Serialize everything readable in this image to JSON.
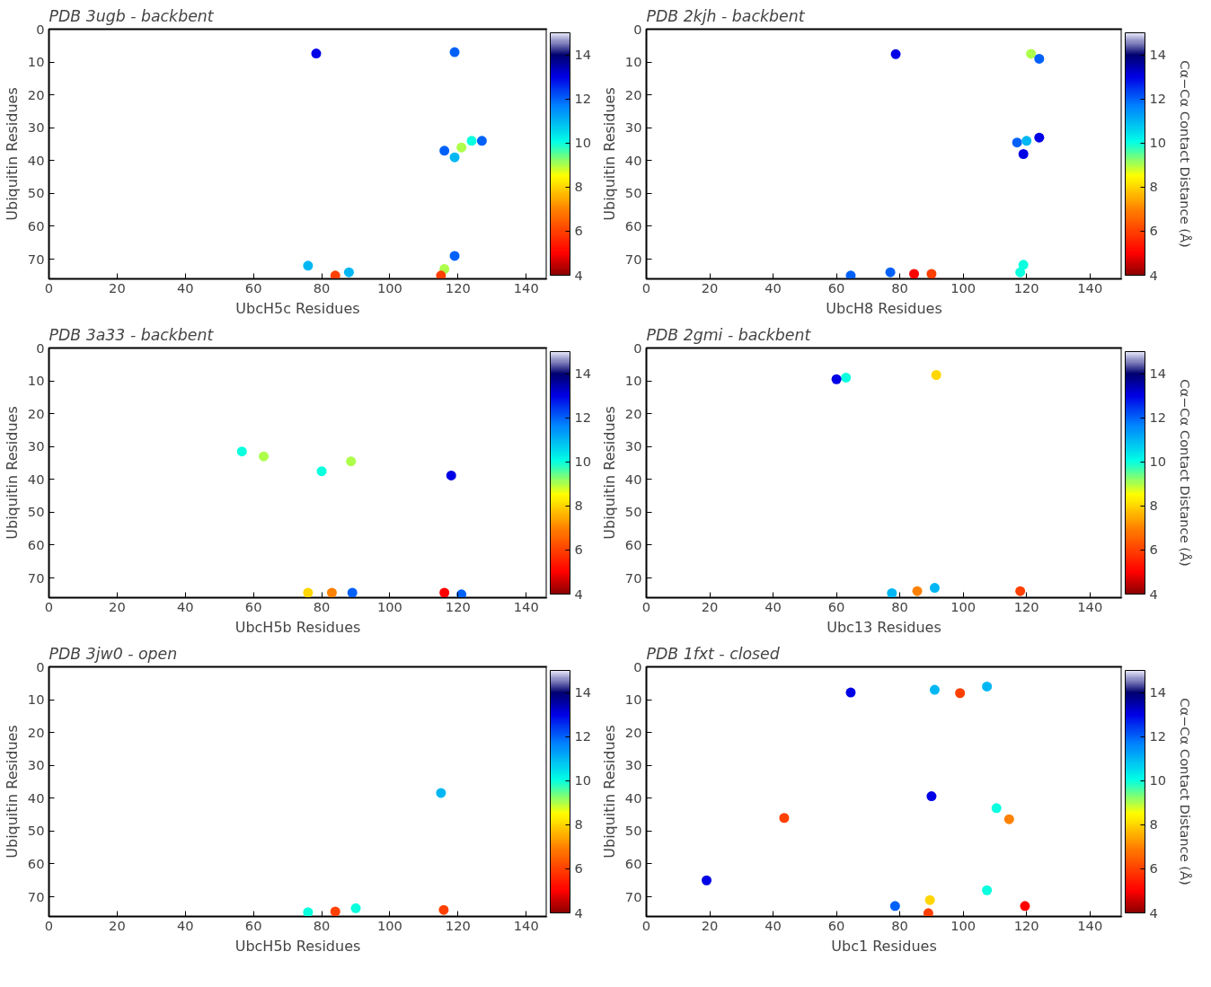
{
  "chart_data": [
    {
      "type": "scatter",
      "title": "PDB 3ugb - backbent",
      "xlabel": "UbcH5c Residues",
      "ylabel": "Ubiquitin Residues",
      "marker": "circle",
      "xlim": [
        0,
        146
      ],
      "ylim": [
        76,
        0
      ],
      "xticks": [
        0,
        20,
        40,
        60,
        80,
        100,
        120,
        140
      ],
      "yticks": [
        0,
        10,
        20,
        30,
        40,
        50,
        60,
        70
      ],
      "clim": [
        4,
        15
      ],
      "cticks": [
        4,
        6,
        8,
        10,
        12,
        14
      ],
      "x": [
        78.4,
        119,
        116,
        121,
        124,
        127,
        119,
        76,
        84,
        88,
        116,
        115,
        119
      ],
      "values": [
        7.4,
        7,
        37,
        36,
        34,
        34,
        39,
        72,
        75,
        74,
        73,
        75,
        69
      ],
      "cvalues": [
        13,
        12,
        12,
        9,
        10,
        12,
        11,
        11,
        6,
        11,
        9,
        6,
        12
      ]
    },
    {
      "type": "scatter",
      "title": "PDB 2kjh - backbent",
      "xlabel": "UbcH8 Residues",
      "ylabel": "Ubiquitin Residues",
      "clabel": "Cα−Cα Contact Distance (Å)",
      "marker": "circle",
      "xlim": [
        0,
        150
      ],
      "ylim": [
        76,
        0
      ],
      "xticks": [
        0,
        20,
        40,
        60,
        80,
        100,
        120,
        140
      ],
      "yticks": [
        0,
        10,
        20,
        30,
        40,
        50,
        60,
        70
      ],
      "clim": [
        4,
        15
      ],
      "cticks": [
        4,
        6,
        8,
        10,
        12,
        14
      ],
      "x": [
        78.7,
        121.4,
        124,
        117,
        120,
        124,
        119,
        64.5,
        77,
        84.5,
        90,
        119,
        118
      ],
      "values": [
        7.6,
        7.5,
        9,
        34.5,
        34,
        33,
        38,
        75,
        74,
        74.5,
        74.5,
        71.7,
        74
      ],
      "cvalues": [
        13,
        9,
        12,
        12,
        11,
        13,
        13,
        12,
        12,
        5,
        6,
        10,
        10
      ]
    },
    {
      "type": "scatter",
      "title": "PDB 3a33 - backbent",
      "xlabel": "UbcH5b Residues",
      "ylabel": "Ubiquitin Residues",
      "marker": "circle",
      "xlim": [
        0,
        146
      ],
      "ylim": [
        76,
        0
      ],
      "xticks": [
        0,
        20,
        40,
        60,
        80,
        100,
        120,
        140
      ],
      "yticks": [
        0,
        10,
        20,
        30,
        40,
        50,
        60,
        70
      ],
      "clim": [
        4,
        15
      ],
      "cticks": [
        4,
        6,
        8,
        10,
        12,
        14
      ],
      "x": [
        56.6,
        63,
        80,
        88.6,
        118,
        76,
        83,
        89,
        116,
        121
      ],
      "values": [
        31.5,
        33,
        37.5,
        34.5,
        38.8,
        74.5,
        74.5,
        74.5,
        74.5,
        75
      ],
      "cvalues": [
        10,
        9,
        10,
        9,
        13,
        8,
        7,
        12,
        5,
        12
      ]
    },
    {
      "type": "scatter",
      "title": "PDB 2gmi - backbent",
      "xlabel": "Ubc13 Residues",
      "ylabel": "Ubiquitin Residues",
      "clabel": "Cα−Cα Contact Distance (Å)",
      "marker": "circle",
      "xlim": [
        0,
        150
      ],
      "ylim": [
        76,
        0
      ],
      "xticks": [
        0,
        20,
        40,
        60,
        80,
        100,
        120,
        140
      ],
      "yticks": [
        0,
        10,
        20,
        30,
        40,
        50,
        60,
        70
      ],
      "clim": [
        4,
        15
      ],
      "cticks": [
        4,
        6,
        8,
        10,
        12,
        14
      ],
      "x": [
        63,
        60,
        91.5,
        77.5,
        85.5,
        91,
        118
      ],
      "values": [
        9,
        9.5,
        8.2,
        74.6,
        74,
        73,
        74
      ],
      "cvalues": [
        10,
        13,
        8,
        11,
        7,
        11,
        6
      ]
    },
    {
      "type": "scatter",
      "title": "PDB 3jw0 - open",
      "xlabel": "UbcH5b Residues",
      "ylabel": "Ubiquitin Residues",
      "marker": "circle",
      "xlim": [
        0,
        146
      ],
      "ylim": [
        76,
        0
      ],
      "xticks": [
        0,
        20,
        40,
        60,
        80,
        100,
        120,
        140
      ],
      "yticks": [
        0,
        10,
        20,
        30,
        40,
        50,
        60,
        70
      ],
      "clim": [
        4,
        15
      ],
      "cticks": [
        4,
        6,
        8,
        10,
        12,
        14
      ],
      "x": [
        115,
        76,
        84,
        90,
        115.8
      ],
      "values": [
        38.4,
        74.7,
        74.5,
        73.5,
        74
      ],
      "cvalues": [
        11,
        10,
        6,
        10,
        6
      ]
    },
    {
      "type": "scatter",
      "title": "PDB 1fxt - closed",
      "xlabel": "Ubc1 Residues",
      "ylabel": "Ubiquitin Residues",
      "clabel": "Cα−Cα Contact Distance (Å)",
      "marker": "circle",
      "xlim": [
        0,
        150
      ],
      "ylim": [
        76,
        0
      ],
      "xticks": [
        0,
        20,
        40,
        60,
        80,
        100,
        120,
        140
      ],
      "yticks": [
        0,
        10,
        20,
        30,
        40,
        50,
        60,
        70
      ],
      "clim": [
        4,
        15
      ],
      "cticks": [
        4,
        6,
        8,
        10,
        12,
        14
      ],
      "x": [
        64.5,
        91,
        99,
        107.5,
        90,
        110.5,
        114.5,
        43.5,
        19,
        78.5,
        89.5,
        89,
        107.5,
        119.5
      ],
      "values": [
        7.8,
        7,
        8,
        6,
        39.4,
        43,
        46.4,
        46,
        65,
        72.8,
        71,
        75,
        68,
        72.8
      ],
      "cvalues": [
        13,
        11,
        6,
        11,
        13,
        10,
        7,
        6,
        13,
        12,
        8,
        6,
        10,
        5
      ]
    }
  ]
}
